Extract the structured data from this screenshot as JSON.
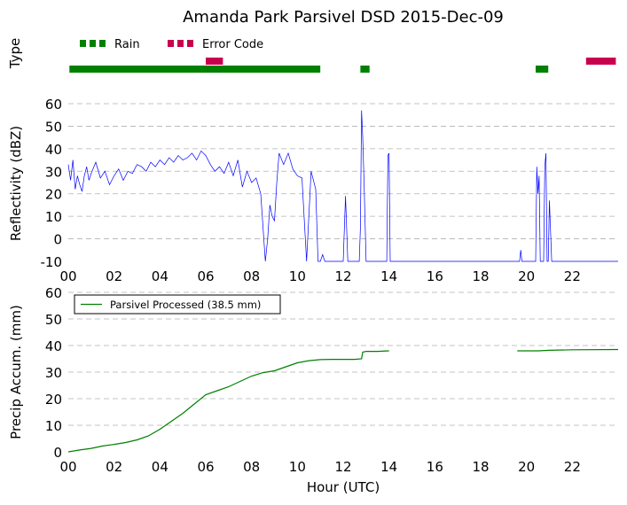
{
  "title": "Amanda Park Parsivel DSD 2015-Dec-09",
  "xlabel": "Hour (UTC)",
  "x_ticks": [
    "00",
    "02",
    "04",
    "06",
    "08",
    "10",
    "12",
    "14",
    "16",
    "18",
    "20",
    "22"
  ],
  "colors": {
    "rain": "#008000",
    "error": "#c8004e",
    "reflectivity": "#0000ff",
    "precip": "#008000"
  },
  "chart_data": [
    {
      "type": "bar",
      "panel": "type",
      "ylabel": "Type",
      "xlim": [
        0,
        24
      ],
      "series": [
        {
          "name": "Rain",
          "intervals": [
            [
              0.05,
              11.0
            ],
            [
              12.75,
              13.15
            ],
            [
              20.4,
              20.95
            ]
          ]
        },
        {
          "name": "Error Code",
          "intervals": [
            [
              6.0,
              6.75
            ],
            [
              22.6,
              23.9
            ]
          ]
        }
      ]
    },
    {
      "type": "line",
      "panel": "reflectivity",
      "ylabel": "Reflectivity (dBZ)",
      "xlim": [
        0,
        24
      ],
      "ylim": [
        -10,
        60
      ],
      "y_ticks": [
        -10,
        0,
        10,
        20,
        30,
        40,
        50,
        60
      ],
      "grid": "y-dashed",
      "series": [
        {
          "x": [
            0.0,
            0.1,
            0.2,
            0.3,
            0.4,
            0.5,
            0.6,
            0.7,
            0.8,
            0.9,
            1.0,
            1.2,
            1.4,
            1.6,
            1.8,
            2.0,
            2.2,
            2.4,
            2.6,
            2.8,
            3.0,
            3.2,
            3.4,
            3.6,
            3.8,
            4.0,
            4.2,
            4.4,
            4.6,
            4.8,
            5.0,
            5.2,
            5.4,
            5.6,
            5.8,
            6.0,
            6.2,
            6.4,
            6.6,
            6.8,
            7.0,
            7.2,
            7.4,
            7.6,
            7.8,
            8.0,
            8.2,
            8.4,
            8.6,
            8.7,
            8.8,
            8.9,
            9.0,
            9.1,
            9.2,
            9.4,
            9.6,
            9.8,
            10.0,
            10.2,
            10.4,
            10.6,
            10.8,
            10.9,
            11.0,
            11.1,
            11.2,
            11.3,
            11.5,
            12.0,
            12.1,
            12.2,
            12.3,
            12.6,
            12.7,
            12.75,
            12.8,
            12.85,
            12.9,
            12.95,
            13.0,
            13.1,
            13.2,
            13.4,
            13.6,
            13.8,
            13.9,
            13.95,
            14.0,
            14.05,
            19.6,
            19.7,
            19.75,
            19.8,
            19.9,
            20.2,
            20.4,
            20.45,
            20.5,
            20.55,
            20.6,
            20.65,
            20.7,
            20.75,
            20.8,
            20.85,
            20.9,
            20.95,
            21.0,
            21.1,
            22.0,
            24.0
          ],
          "y": [
            33,
            26,
            35,
            22,
            28,
            24,
            21,
            28,
            32,
            26,
            29,
            34,
            27,
            30,
            24,
            28,
            31,
            26,
            30,
            29,
            33,
            32,
            30,
            34,
            32,
            35,
            33,
            36,
            34,
            37,
            35,
            36,
            38,
            35,
            39,
            37,
            33,
            30,
            32,
            29,
            34,
            28,
            35,
            23,
            30,
            25,
            27,
            20,
            -10,
            0,
            15,
            10,
            8,
            25,
            38,
            33,
            38,
            31,
            28,
            27,
            -10,
            30,
            22,
            -10,
            -10,
            -7,
            -10,
            -10,
            -10,
            -10,
            19,
            -10,
            -10,
            -10,
            -10,
            5,
            57,
            45,
            28,
            10,
            -10,
            -10,
            -10,
            -10,
            -10,
            -10,
            -10,
            37,
            38,
            -10,
            -10,
            -10,
            -5,
            -10,
            -10,
            -10,
            -10,
            32,
            20,
            28,
            -10,
            -10,
            -10,
            -10,
            32,
            38,
            -10,
            -10,
            17,
            -10,
            -10,
            -10
          ]
        }
      ]
    },
    {
      "type": "line",
      "panel": "precip",
      "ylabel": "Precip Accum. (mm)",
      "xlim": [
        0,
        24
      ],
      "ylim": [
        0,
        60
      ],
      "y_ticks": [
        0,
        10,
        20,
        30,
        40,
        50,
        60
      ],
      "grid": "y-dashed",
      "legend": "top-left",
      "series": [
        {
          "name": "Parsivel Processed (38.5 mm)",
          "x": [
            0.0,
            0.5,
            1.0,
            1.5,
            2.0,
            2.5,
            3.0,
            3.5,
            4.0,
            4.5,
            5.0,
            5.5,
            6.0,
            6.5,
            7.0,
            7.5,
            8.0,
            8.5,
            9.0,
            9.5,
            10.0,
            10.5,
            11.0,
            11.5,
            12.0,
            12.5,
            12.8,
            12.85,
            13.0,
            13.5,
            14.0
          ],
          "y": [
            0,
            0.7,
            1.3,
            2.2,
            2.8,
            3.5,
            4.5,
            6,
            8.5,
            11.5,
            14.5,
            18,
            21.5,
            23,
            24.5,
            26.5,
            28.5,
            29.8,
            30.5,
            32,
            33.5,
            34.3,
            34.7,
            34.8,
            34.8,
            34.8,
            35,
            37.5,
            37.8,
            37.8,
            38.0
          ]
        },
        {
          "name": "",
          "x": [
            19.6,
            20.5,
            21.0,
            22.0,
            24.0
          ],
          "y": [
            38.0,
            38.0,
            38.2,
            38.4,
            38.5
          ]
        }
      ]
    }
  ]
}
